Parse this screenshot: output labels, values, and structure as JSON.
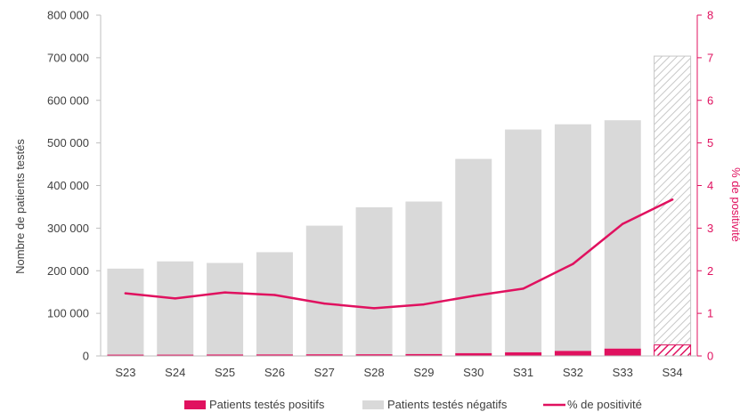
{
  "chart_data": {
    "type": "bar",
    "categories": [
      "S23",
      "S24",
      "S25",
      "S26",
      "S27",
      "S28",
      "S29",
      "S30",
      "S31",
      "S32",
      "S33",
      "S34"
    ],
    "series": [
      {
        "name": "Patients testés positifs",
        "kind": "bar",
        "stack": "main",
        "color": "#e0115f",
        "values": [
          3000,
          3000,
          3300,
          3500,
          3800,
          3900,
          4400,
          6500,
          8500,
          11800,
          17200,
          25800
        ]
      },
      {
        "name": "Patients testés négatifs",
        "kind": "bar",
        "stack": "main",
        "color": "#d9d9d9",
        "values": [
          202000,
          219000,
          215000,
          240000,
          302000,
          345000,
          358000,
          456000,
          523000,
          532000,
          536000,
          678000
        ]
      },
      {
        "name": "% de positivité",
        "kind": "line",
        "axis": "right",
        "color": "#e0115f",
        "values": [
          1.47,
          1.35,
          1.49,
          1.43,
          1.23,
          1.12,
          1.21,
          1.41,
          1.58,
          2.16,
          3.1,
          3.67
        ]
      }
    ],
    "hatched_categories": [
      "S34"
    ],
    "ylabel": "Nombre de patients testés",
    "ylabel_right": "% de positivité",
    "ylim": [
      0,
      800000
    ],
    "ylim_right": [
      0,
      8
    ],
    "yticks": [
      "0",
      "100 000",
      "200 000",
      "300 000",
      "400 000",
      "500 000",
      "600 000",
      "700 000",
      "800 000"
    ],
    "yticks_right": [
      "0",
      "1",
      "2",
      "3",
      "4",
      "5",
      "6",
      "7",
      "8"
    ],
    "legend_position": "bottom",
    "grid": false
  }
}
